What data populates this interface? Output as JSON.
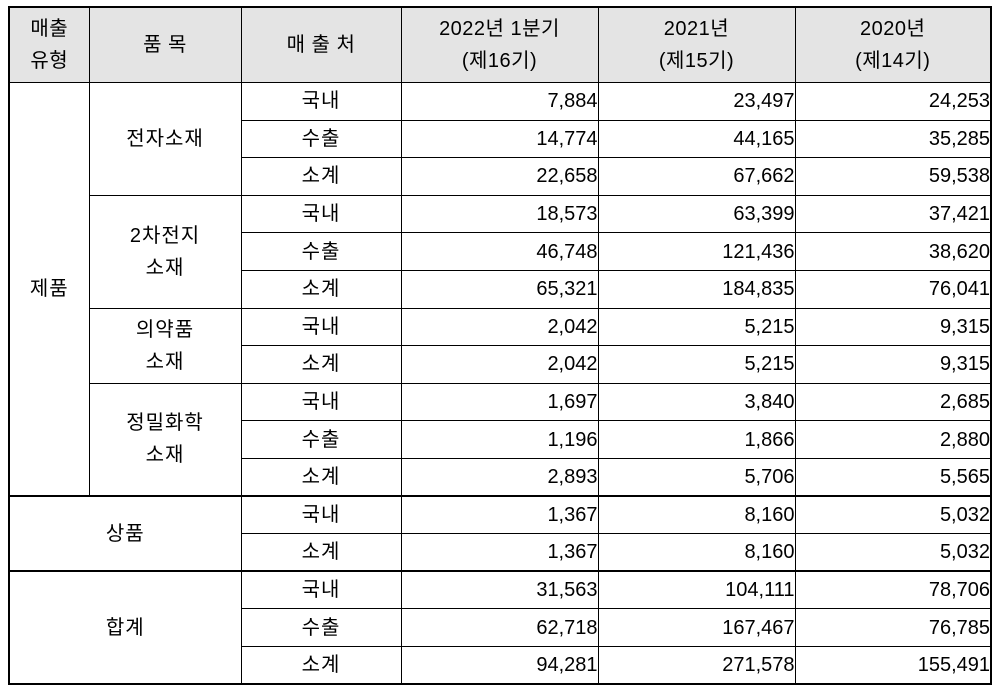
{
  "colors": {
    "header_bg": "#e4e4e4",
    "border": "#000000",
    "text": "#000000"
  },
  "header": {
    "sales_type": "매출\n유형",
    "item": "품 목",
    "channel": "매 출 처",
    "y2022": "2022년 1분기\n(제16기)",
    "y2021": "2021년\n(제15기)",
    "y2020": "2020년\n(제14기)"
  },
  "sections": [
    {
      "type_label": "제품",
      "items": [
        {
          "name": "전자소재",
          "rows": [
            {
              "channel": "국내",
              "q2022": "7,884",
              "y2021": "23,497",
              "y2020": "24,253"
            },
            {
              "channel": "수출",
              "q2022": "14,774",
              "y2021": "44,165",
              "y2020": "35,285"
            },
            {
              "channel": "소계",
              "q2022": "22,658",
              "y2021": "67,662",
              "y2020": "59,538"
            }
          ]
        },
        {
          "name": "2차전지\n소재",
          "rows": [
            {
              "channel": "국내",
              "q2022": "18,573",
              "y2021": "63,399",
              "y2020": "37,421"
            },
            {
              "channel": "수출",
              "q2022": "46,748",
              "y2021": "121,436",
              "y2020": "38,620"
            },
            {
              "channel": "소계",
              "q2022": "65,321",
              "y2021": "184,835",
              "y2020": "76,041"
            }
          ]
        },
        {
          "name": "의약품\n소재",
          "rows": [
            {
              "channel": "국내",
              "q2022": "2,042",
              "y2021": "5,215",
              "y2020": "9,315"
            },
            {
              "channel": "소계",
              "q2022": "2,042",
              "y2021": "5,215",
              "y2020": "9,315"
            }
          ]
        },
        {
          "name": "정밀화학\n소재",
          "rows": [
            {
              "channel": "국내",
              "q2022": "1,697",
              "y2021": "3,840",
              "y2020": "2,685"
            },
            {
              "channel": "수출",
              "q2022": "1,196",
              "y2021": "1,866",
              "y2020": "2,880"
            },
            {
              "channel": "소계",
              "q2022": "2,893",
              "y2021": "5,706",
              "y2020": "5,565"
            }
          ]
        }
      ]
    },
    {
      "type_label": "상품",
      "rows": [
        {
          "channel": "국내",
          "q2022": "1,367",
          "y2021": "8,160",
          "y2020": "5,032"
        },
        {
          "channel": "소계",
          "q2022": "1,367",
          "y2021": "8,160",
          "y2020": "5,032"
        }
      ]
    },
    {
      "type_label": "합계",
      "rows": [
        {
          "channel": "국내",
          "q2022": "31,563",
          "y2021": "104,111",
          "y2020": "78,706"
        },
        {
          "channel": "수출",
          "q2022": "62,718",
          "y2021": "167,467",
          "y2020": "76,785"
        },
        {
          "channel": "소계",
          "q2022": "94,281",
          "y2021": "271,578",
          "y2020": "155,491"
        }
      ]
    }
  ]
}
